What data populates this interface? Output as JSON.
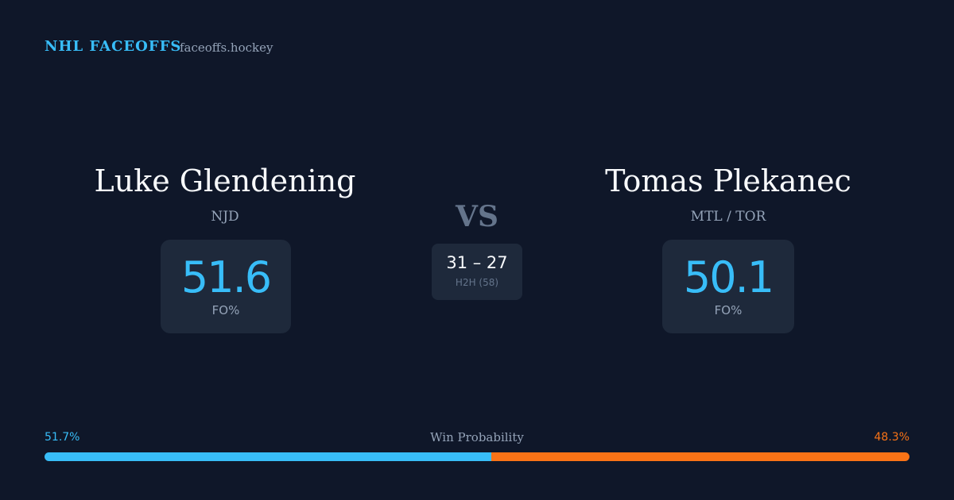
{
  "header": {
    "brand": "NHL FACEOFFS",
    "site": "faceoffs.hockey"
  },
  "matchup": {
    "left": {
      "name": "Luke Glendening",
      "team": "NJD",
      "stat": {
        "value": 51.6,
        "label": "FO%"
      }
    },
    "vs": "VS",
    "head_to_head": {
      "score": "31 – 27",
      "label": "H2H (58)"
    },
    "right": {
      "name": "Tomas Plekanec",
      "team": "MTL / TOR",
      "stat": {
        "value": 50.1,
        "label": "FO%"
      }
    }
  },
  "win_probability": {
    "title": "Win Probability",
    "left": {
      "value": 51.7,
      "label": "51.7%",
      "color": "#38bdf8"
    },
    "right": {
      "value": 48.3,
      "label": "48.3%",
      "color": "#f97316"
    }
  }
}
